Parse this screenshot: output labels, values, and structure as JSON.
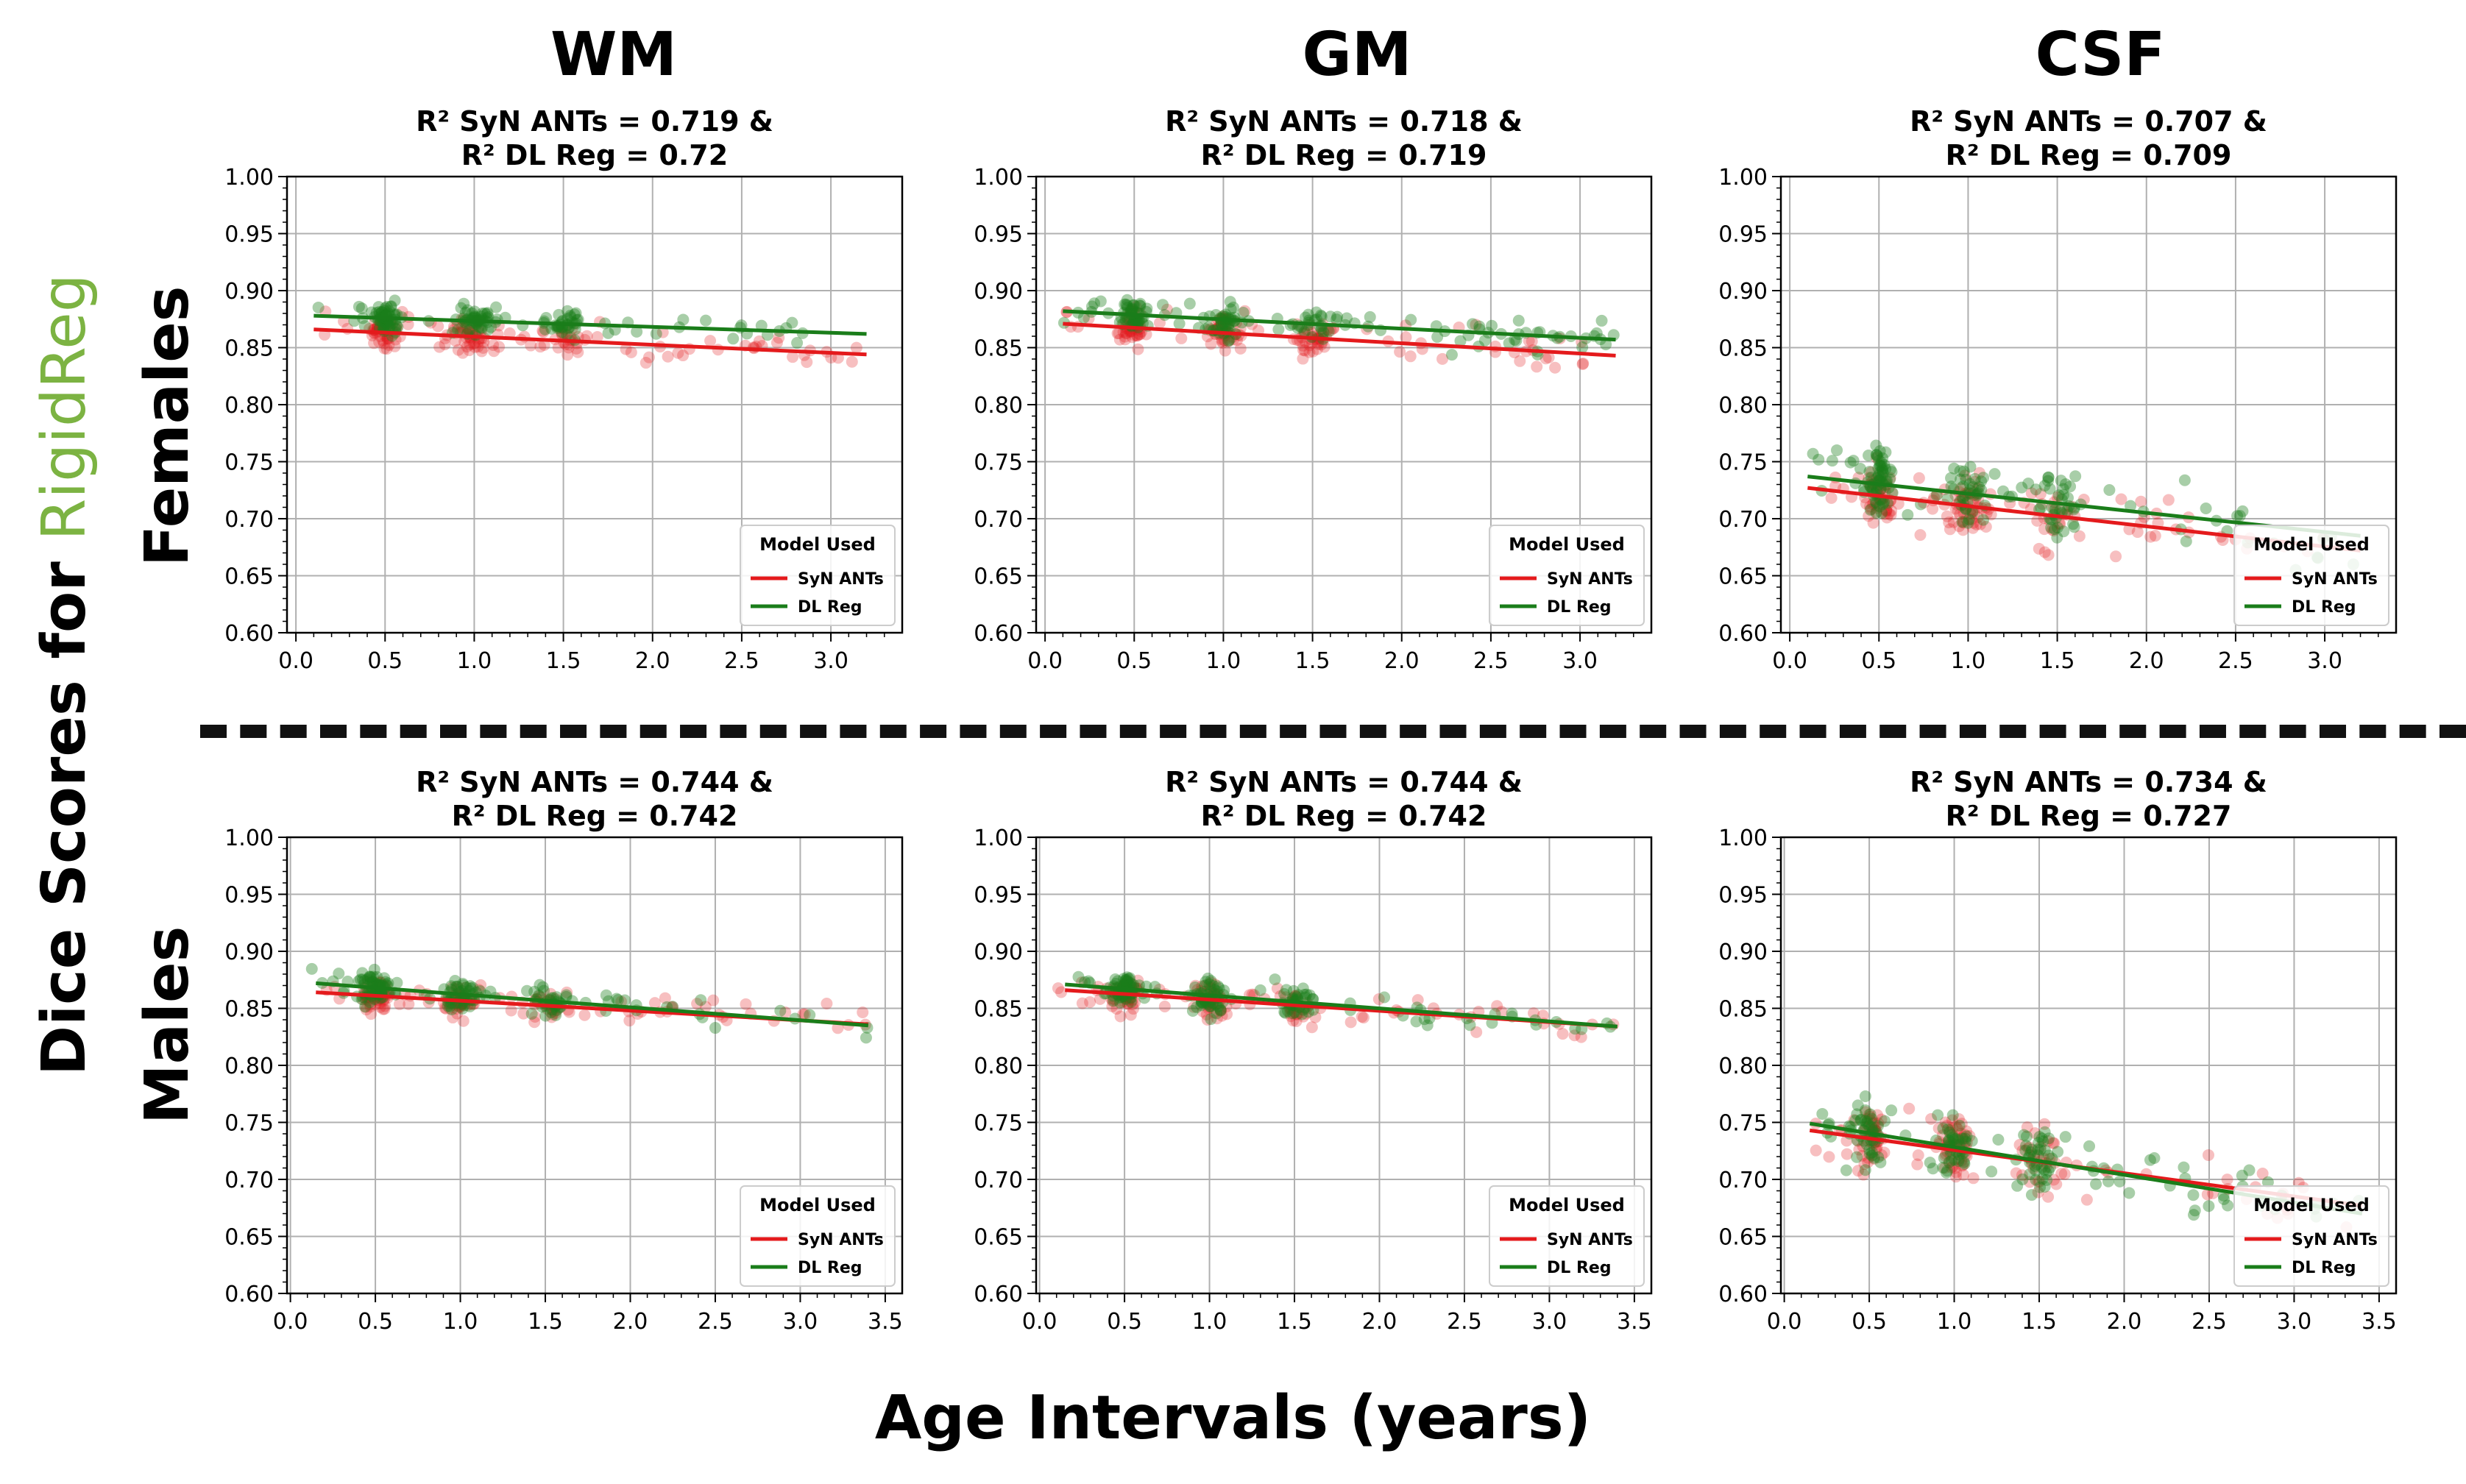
{
  "columns": [
    "WM",
    "GM",
    "CSF"
  ],
  "rows": [
    "Females",
    "Males"
  ],
  "y_label": {
    "prefix": "Dice Scores for ",
    "accent": "RigidReg",
    "accent_color": "#7cb342"
  },
  "x_label": "Age Intervals (years)",
  "colors": {
    "syn_ants": "#e41a1c",
    "dl_reg": "#1a7d1a"
  },
  "chart_data": [
    {
      "type": "scatter",
      "row": "Females",
      "col": "WM",
      "title": [
        "R² SyN ANTs = 0.719 &",
        "R² DL Reg = 0.72"
      ],
      "xlim": [
        -0.05,
        3.4
      ],
      "ylim": [
        0.6,
        1.0
      ],
      "xticks": [
        "0.0",
        "0.5",
        "1.0",
        "1.5",
        "2.0",
        "2.5",
        "3.0"
      ],
      "yticks": [
        "0.60",
        "0.65",
        "0.70",
        "0.75",
        "0.80",
        "0.85",
        "0.90",
        "0.95",
        "1.00"
      ],
      "legend": {
        "title": "Model Used",
        "entries": [
          "SyN ANTs",
          "DL Reg"
        ],
        "loc": "lower right"
      },
      "series": [
        {
          "name": "SyN ANTs",
          "fit": [
            [
              0.1,
              0.866
            ],
            [
              3.2,
              0.844
            ]
          ],
          "center": 0.857,
          "spread": 0.016
        },
        {
          "name": "DL Reg",
          "fit": [
            [
              0.1,
              0.878
            ],
            [
              3.2,
              0.862
            ]
          ],
          "center": 0.872,
          "spread": 0.014
        }
      ]
    },
    {
      "type": "scatter",
      "row": "Females",
      "col": "GM",
      "title": [
        "R² SyN ANTs = 0.718 &",
        "R² DL Reg = 0.719"
      ],
      "xlim": [
        -0.05,
        3.4
      ],
      "ylim": [
        0.6,
        1.0
      ],
      "xticks": [
        "0.0",
        "0.5",
        "1.0",
        "1.5",
        "2.0",
        "2.5",
        "3.0"
      ],
      "yticks": [
        "0.60",
        "0.65",
        "0.70",
        "0.75",
        "0.80",
        "0.85",
        "0.90",
        "0.95",
        "1.00"
      ],
      "legend": {
        "title": "Model Used",
        "entries": [
          "SyN ANTs",
          "DL Reg"
        ],
        "loc": "lower right"
      },
      "series": [
        {
          "name": "SyN ANTs",
          "fit": [
            [
              0.1,
              0.871
            ],
            [
              3.2,
              0.843
            ]
          ],
          "center": 0.857,
          "spread": 0.018
        },
        {
          "name": "DL Reg",
          "fit": [
            [
              0.1,
              0.882
            ],
            [
              3.2,
              0.857
            ]
          ],
          "center": 0.872,
          "spread": 0.016
        }
      ]
    },
    {
      "type": "scatter",
      "row": "Females",
      "col": "CSF",
      "title": [
        "R² SyN ANTs = 0.707 &",
        "R² DL Reg = 0.709"
      ],
      "xlim": [
        -0.05,
        3.4
      ],
      "ylim": [
        0.6,
        1.0
      ],
      "xticks": [
        "0.0",
        "0.5",
        "1.0",
        "1.5",
        "2.0",
        "2.5",
        "3.0"
      ],
      "yticks": [
        "0.60",
        "0.65",
        "0.70",
        "0.75",
        "0.80",
        "0.85",
        "0.90",
        "0.95",
        "1.00"
      ],
      "legend": {
        "title": "Model Used",
        "entries": [
          "SyN ANTs",
          "DL Reg"
        ],
        "loc": "lower right"
      },
      "series": [
        {
          "name": "SyN ANTs",
          "fit": [
            [
              0.1,
              0.727
            ],
            [
              3.2,
              0.672
            ]
          ],
          "center": 0.705,
          "spread": 0.03
        },
        {
          "name": "DL Reg",
          "fit": [
            [
              0.1,
              0.737
            ],
            [
              3.2,
              0.685
            ]
          ],
          "center": 0.715,
          "spread": 0.03
        }
      ]
    },
    {
      "type": "scatter",
      "row": "Males",
      "col": "WM",
      "title": [
        "R² SyN ANTs = 0.744 &",
        "R² DL Reg = 0.742"
      ],
      "xlim": [
        -0.02,
        3.6
      ],
      "ylim": [
        0.6,
        1.0
      ],
      "xticks": [
        "0.0",
        "0.5",
        "1.0",
        "1.5",
        "2.0",
        "2.5",
        "3.0",
        "3.5"
      ],
      "yticks": [
        "0.60",
        "0.65",
        "0.70",
        "0.75",
        "0.80",
        "0.85",
        "0.90",
        "0.95",
        "1.00"
      ],
      "legend": {
        "title": "Model Used",
        "entries": [
          "SyN ANTs",
          "DL Reg"
        ],
        "loc": "lower right"
      },
      "series": [
        {
          "name": "SyN ANTs",
          "fit": [
            [
              0.15,
              0.864
            ],
            [
              3.4,
              0.836
            ]
          ],
          "center": 0.855,
          "spread": 0.016
        },
        {
          "name": "DL Reg",
          "fit": [
            [
              0.15,
              0.872
            ],
            [
              3.4,
              0.835
            ]
          ],
          "center": 0.858,
          "spread": 0.016
        }
      ]
    },
    {
      "type": "scatter",
      "row": "Males",
      "col": "GM",
      "title": [
        "R² SyN ANTs = 0.744 &",
        "R² DL Reg = 0.742"
      ],
      "xlim": [
        -0.02,
        3.6
      ],
      "ylim": [
        0.6,
        1.0
      ],
      "xticks": [
        "0.0",
        "0.5",
        "1.0",
        "1.5",
        "2.0",
        "2.5",
        "3.0",
        "3.5"
      ],
      "yticks": [
        "0.60",
        "0.65",
        "0.70",
        "0.75",
        "0.80",
        "0.85",
        "0.90",
        "0.95",
        "1.00"
      ],
      "legend": {
        "title": "Model Used",
        "entries": [
          "SyN ANTs",
          "DL Reg"
        ],
        "loc": "lower right"
      },
      "series": [
        {
          "name": "SyN ANTs",
          "fit": [
            [
              0.15,
              0.866
            ],
            [
              3.4,
              0.834
            ]
          ],
          "center": 0.855,
          "spread": 0.017
        },
        {
          "name": "DL Reg",
          "fit": [
            [
              0.15,
              0.871
            ],
            [
              3.4,
              0.834
            ]
          ],
          "center": 0.858,
          "spread": 0.017
        }
      ]
    },
    {
      "type": "scatter",
      "row": "Males",
      "col": "CSF",
      "title": [
        "R² SyN ANTs = 0.734 &",
        "R² DL Reg = 0.727"
      ],
      "xlim": [
        -0.02,
        3.6
      ],
      "ylim": [
        0.6,
        1.0
      ],
      "xticks": [
        "0.0",
        "0.5",
        "1.0",
        "1.5",
        "2.0",
        "2.5",
        "3.0",
        "3.5"
      ],
      "yticks": [
        "0.60",
        "0.65",
        "0.70",
        "0.75",
        "0.80",
        "0.85",
        "0.90",
        "0.95",
        "1.00"
      ],
      "legend": {
        "title": "Model Used",
        "entries": [
          "SyN ANTs",
          "DL Reg"
        ],
        "loc": "lower right"
      },
      "series": [
        {
          "name": "SyN ANTs",
          "fit": [
            [
              0.15,
              0.743
            ],
            [
              3.4,
              0.677
            ]
          ],
          "center": 0.715,
          "spread": 0.03
        },
        {
          "name": "DL Reg",
          "fit": [
            [
              0.15,
              0.749
            ],
            [
              3.4,
              0.67
            ]
          ],
          "center": 0.715,
          "spread": 0.03
        }
      ]
    }
  ]
}
